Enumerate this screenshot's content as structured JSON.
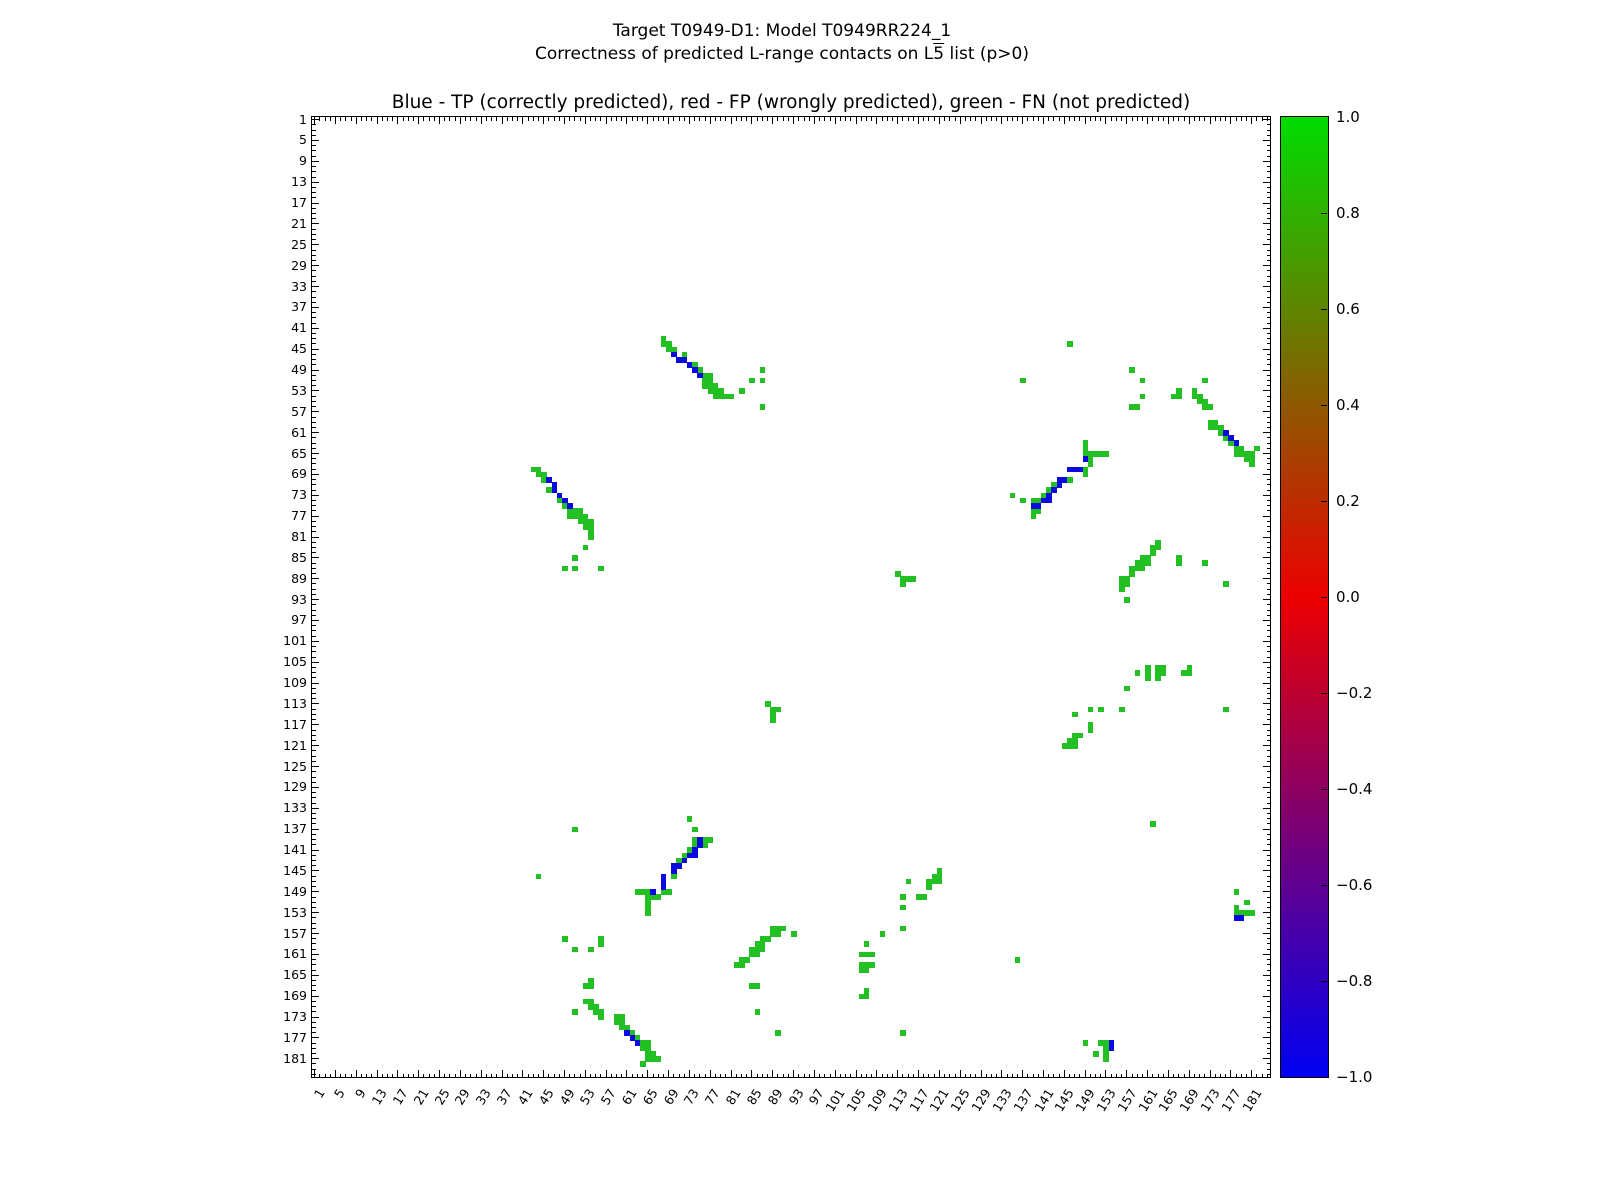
{
  "figure": {
    "suptitle_line1": "Target T0949-D1: Model T0949RR224_1",
    "suptitle_line2_prefix": "Correctness of predicted L-range contacts on L",
    "suptitle_line2_overline": "5",
    "suptitle_line2_suffix": " list (p>0)",
    "axes_title": "Blue - TP (correctly predicted), red - FP (wrongly predicted), green - FN (not predicted)"
  },
  "chart_data": {
    "type": "heatmap",
    "title": "Blue - TP (correctly predicted), red - FP (wrongly predicted), green - FN (not predicted)",
    "n_residues": 184,
    "axis_tick_labels": [
      1,
      5,
      9,
      13,
      17,
      21,
      25,
      29,
      33,
      37,
      41,
      45,
      49,
      53,
      57,
      61,
      65,
      69,
      73,
      77,
      81,
      85,
      89,
      93,
      97,
      101,
      105,
      109,
      113,
      117,
      121,
      125,
      129,
      133,
      137,
      141,
      145,
      149,
      153,
      157,
      161,
      165,
      169,
      173,
      177,
      181
    ],
    "symmetric": true,
    "grid": false,
    "legend": {
      "TP": "blue",
      "FP": "red",
      "FN": "green"
    },
    "colors": {
      "tp": "#0a0ae0",
      "fn": "#22c022",
      "fp": "#ee0000"
    },
    "colorbar": {
      "tick_labels": [
        "1.0",
        "0.8",
        "0.6",
        "0.4",
        "0.2",
        "0.0",
        "−0.2",
        "−0.4",
        "−0.6",
        "−0.8",
        "−1.0"
      ],
      "tick_values": [
        1.0,
        0.8,
        0.6,
        0.4,
        0.2,
        0.0,
        -0.2,
        -0.4,
        -0.6,
        -0.8,
        -1.0
      ],
      "top_color": "#00dd00",
      "middle_color": "#ec0000",
      "bottom_color": "#0000f2",
      "range": [
        -1.0,
        1.0
      ]
    },
    "tp_cells": [
      [
        70,
        46
      ],
      [
        71,
        47
      ],
      [
        72,
        47
      ],
      [
        73,
        48
      ],
      [
        74,
        49
      ],
      [
        75,
        50
      ],
      [
        139,
        75
      ],
      [
        140,
        75
      ],
      [
        141,
        74
      ],
      [
        142,
        74
      ],
      [
        142,
        73
      ],
      [
        143,
        72
      ],
      [
        144,
        71
      ],
      [
        144,
        70
      ],
      [
        145,
        70
      ],
      [
        146,
        68
      ],
      [
        147,
        68
      ],
      [
        148,
        68
      ],
      [
        149,
        66
      ],
      [
        176,
        61
      ],
      [
        177,
        62
      ],
      [
        178,
        63
      ],
      [
        178,
        154
      ],
      [
        179,
        154
      ]
    ],
    "fn_cells": [
      [
        68,
        43
      ],
      [
        68,
        44
      ],
      [
        69,
        44
      ],
      [
        69,
        45
      ],
      [
        70,
        45
      ],
      [
        72,
        46
      ],
      [
        74,
        48
      ],
      [
        75,
        49
      ],
      [
        76,
        50
      ],
      [
        77,
        50
      ],
      [
        76,
        51
      ],
      [
        77,
        51
      ],
      [
        76,
        52
      ],
      [
        77,
        52
      ],
      [
        78,
        52
      ],
      [
        77,
        53
      ],
      [
        78,
        53
      ],
      [
        79,
        53
      ],
      [
        78,
        54
      ],
      [
        79,
        54
      ],
      [
        80,
        54
      ],
      [
        81,
        54
      ],
      [
        83,
        53
      ],
      [
        85,
        51
      ],
      [
        87,
        49
      ],
      [
        87,
        51
      ],
      [
        87,
        56
      ],
      [
        146,
        44
      ],
      [
        158,
        49
      ],
      [
        160,
        51
      ],
      [
        160,
        54
      ],
      [
        158,
        56
      ],
      [
        159,
        56
      ],
      [
        137,
        51
      ],
      [
        172,
        51
      ],
      [
        166,
        54
      ],
      [
        167,
        53
      ],
      [
        167,
        54
      ],
      [
        170,
        53
      ],
      [
        170,
        54
      ],
      [
        171,
        54
      ],
      [
        171,
        55
      ],
      [
        172,
        55
      ],
      [
        172,
        56
      ],
      [
        173,
        56
      ],
      [
        173,
        59
      ],
      [
        174,
        59
      ],
      [
        173,
        60
      ],
      [
        174,
        60
      ],
      [
        175,
        60
      ],
      [
        175,
        61
      ],
      [
        176,
        62
      ],
      [
        177,
        63
      ],
      [
        178,
        64
      ],
      [
        179,
        64
      ],
      [
        178,
        65
      ],
      [
        179,
        65
      ],
      [
        180,
        65
      ],
      [
        181,
        65
      ],
      [
        180,
        66
      ],
      [
        181,
        66
      ],
      [
        181,
        67
      ],
      [
        182,
        64
      ],
      [
        135,
        73
      ],
      [
        137,
        74
      ],
      [
        139,
        74
      ],
      [
        140,
        74
      ],
      [
        141,
        73
      ],
      [
        142,
        72
      ],
      [
        143,
        71
      ],
      [
        146,
        70
      ],
      [
        149,
        63
      ],
      [
        149,
        64
      ],
      [
        149,
        65
      ],
      [
        150,
        65
      ],
      [
        151,
        65
      ],
      [
        152,
        65
      ],
      [
        153,
        65
      ],
      [
        150,
        66
      ],
      [
        150,
        67
      ],
      [
        149,
        68
      ],
      [
        149,
        69
      ],
      [
        139,
        76
      ],
      [
        140,
        76
      ],
      [
        139,
        77
      ],
      [
        156,
        89
      ],
      [
        156,
        90
      ],
      [
        156,
        91
      ],
      [
        157,
        89
      ],
      [
        157,
        90
      ],
      [
        157,
        93
      ],
      [
        158,
        87
      ],
      [
        158,
        88
      ],
      [
        159,
        86
      ],
      [
        159,
        87
      ],
      [
        160,
        85
      ],
      [
        160,
        86
      ],
      [
        160,
        87
      ],
      [
        161,
        85
      ],
      [
        161,
        86
      ],
      [
        162,
        83
      ],
      [
        162,
        84
      ],
      [
        163,
        82
      ],
      [
        163,
        83
      ],
      [
        167,
        85
      ],
      [
        167,
        86
      ],
      [
        172,
        86
      ],
      [
        176,
        90
      ],
      [
        113,
        88
      ],
      [
        114,
        89
      ],
      [
        115,
        89
      ],
      [
        116,
        89
      ],
      [
        114,
        90
      ],
      [
        157,
        110
      ],
      [
        159,
        107
      ],
      [
        161,
        106
      ],
      [
        161,
        107
      ],
      [
        161,
        108
      ],
      [
        163,
        106
      ],
      [
        163,
        107
      ],
      [
        163,
        108
      ],
      [
        164,
        106
      ],
      [
        164,
        107
      ],
      [
        168,
        107
      ],
      [
        169,
        106
      ],
      [
        169,
        107
      ],
      [
        145,
        121
      ],
      [
        146,
        120
      ],
      [
        146,
        121
      ],
      [
        147,
        119
      ],
      [
        147,
        120
      ],
      [
        147,
        121
      ],
      [
        148,
        119
      ],
      [
        150,
        117
      ],
      [
        150,
        118
      ],
      [
        147,
        115
      ],
      [
        150,
        114
      ],
      [
        152,
        114
      ],
      [
        156,
        114
      ],
      [
        176,
        114
      ],
      [
        178,
        149
      ],
      [
        180,
        151
      ],
      [
        178,
        152
      ],
      [
        178,
        153
      ],
      [
        179,
        153
      ],
      [
        180,
        153
      ],
      [
        181,
        153
      ],
      [
        162,
        136
      ]
    ]
  }
}
